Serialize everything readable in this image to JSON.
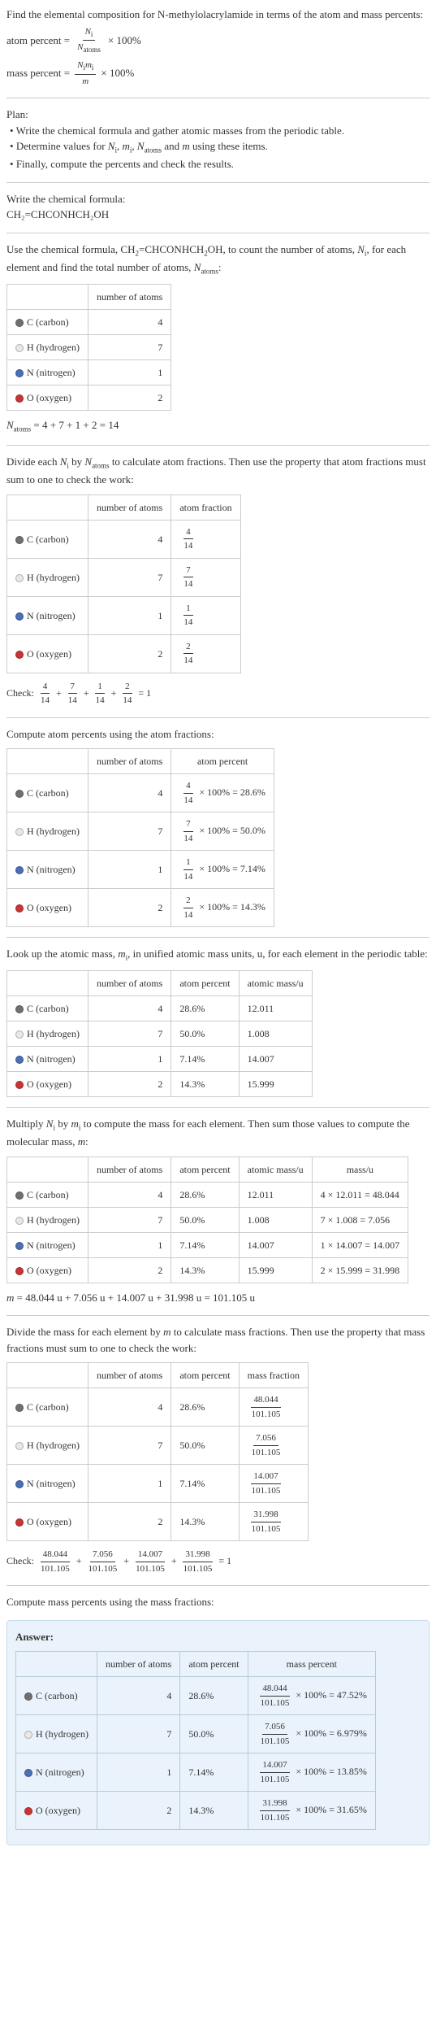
{
  "intro": {
    "line1": "Find the elemental composition for N-methylolacrylamide in terms of the atom and mass percents:",
    "atom_pct_lhs": "atom percent =",
    "atom_pct_num": "N_i",
    "atom_pct_den": "N_atoms",
    "times100": "× 100%",
    "mass_pct_lhs": "mass percent =",
    "mass_pct_num": "N_i m_i",
    "mass_pct_den": "m"
  },
  "plan": {
    "heading": "Plan:",
    "b1": "Write the chemical formula and gather atomic masses from the periodic table.",
    "b2": "Determine values for N_i, m_i, N_atoms and m using these items.",
    "b3": "Finally, compute the percents and check the results."
  },
  "chem": {
    "heading": "Write the chemical formula:",
    "formula": "CH₂=CHCONHCH₂OH"
  },
  "count_intro": "Use the chemical formula, CH₂=CHCONHCH₂OH, to count the number of atoms, N_i, for each element and find the total number of atoms, N_atoms:",
  "elements": [
    {
      "name": "C (carbon)",
      "color": "#707070",
      "atoms": 4,
      "atom_num": 4,
      "atom_pct": "28.6%",
      "mass_u": "12.011",
      "mass_prod": "4 × 12.011 = 48.044",
      "mass_val": "48.044",
      "mass_pct": "47.52%"
    },
    {
      "name": "H (hydrogen)",
      "color": "#e8e8e8",
      "atoms": 7,
      "atom_num": 7,
      "atom_pct": "50.0%",
      "mass_u": "1.008",
      "mass_prod": "7 × 1.008 = 7.056",
      "mass_val": "7.056",
      "mass_pct": "6.979%"
    },
    {
      "name": "N (nitrogen)",
      "color": "#4a6fb5",
      "atoms": 1,
      "atom_num": 1,
      "atom_pct": "7.14%",
      "mass_u": "14.007",
      "mass_prod": "1 × 14.007 = 14.007",
      "mass_val": "14.007",
      "mass_pct": "13.85%"
    },
    {
      "name": "O (oxygen)",
      "color": "#c93434",
      "atoms": 2,
      "atom_num": 2,
      "atom_pct": "14.3%",
      "mass_u": "15.999",
      "mass_prod": "2 × 15.999 = 31.998",
      "mass_val": "31.998",
      "mass_pct": "31.65%"
    }
  ],
  "headers": {
    "num_atoms": "number of atoms",
    "atom_fraction": "atom fraction",
    "atom_percent": "atom percent",
    "atomic_mass": "atomic mass/u",
    "mass": "mass/u",
    "mass_fraction": "mass fraction",
    "mass_percent": "mass percent"
  },
  "natoms_sum": "N_atoms = 4 + 7 + 1 + 2 = 14",
  "denom14": "14",
  "divide_intro": "Divide each N_i by N_atoms to calculate atom fractions. Then use the property that atom fractions must sum to one to check the work:",
  "frac_check_label": "Check:",
  "frac_check_tail": " = 1",
  "atom_pct_intro": "Compute atom percents using the atom fractions:",
  "atom_pct_fmt": "× 100% =",
  "lookup_intro": "Look up the atomic mass, m_i, in unified atomic mass units, u, for each element in the periodic table:",
  "mass_mult_intro": "Multiply N_i by m_i to compute the mass for each element. Then sum those values to compute the molecular mass, m:",
  "m_sum": "m = 48.044 u + 7.056 u + 14.007 u + 31.998 u = 101.105 u",
  "m_denom": "101.105",
  "mass_frac_intro": "Divide the mass for each element by m to calculate mass fractions. Then use the property that mass fractions must sum to one to check the work:",
  "mass_pct_intro": "Compute mass percents using the mass fractions:",
  "answer_label": "Answer:"
}
